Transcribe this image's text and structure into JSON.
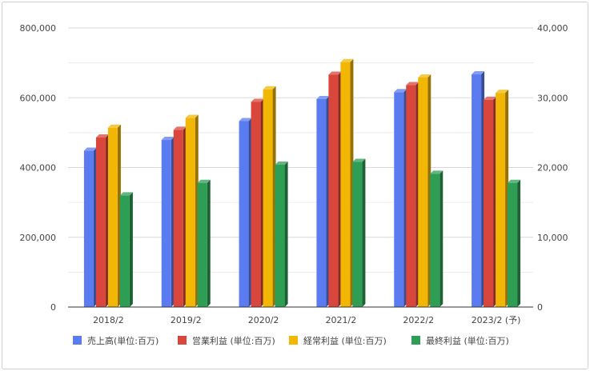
{
  "chart_data": {
    "type": "bar",
    "style": "3d-grouped",
    "categories": [
      "2018/2",
      "2019/2",
      "2020/2",
      "2021/2",
      "2022/2",
      "2023/2 (予)"
    ],
    "left_axis": {
      "ylim": [
        0,
        800000
      ],
      "ticks": [
        0,
        200000,
        400000,
        600000,
        800000
      ],
      "tick_labels": [
        "0",
        "200,000",
        "400,000",
        "600,000",
        "800,000"
      ]
    },
    "right_axis": {
      "ylim": [
        0,
        40000
      ],
      "ticks": [
        0,
        10000,
        20000,
        30000,
        40000
      ],
      "tick_labels": [
        "0",
        "10,000",
        "20,000",
        "30,000",
        "40,000"
      ]
    },
    "grid": true,
    "legend_position": "bottom",
    "series": [
      {
        "name": "売上高(単位:百万)",
        "axis": "left",
        "color": "#5b7cf0",
        "values": [
          448000,
          479000,
          533000,
          596000,
          616000,
          667000
        ]
      },
      {
        "name": "営業利益 (単位:百万)",
        "axis": "right",
        "color": "#d9463b",
        "values": [
          24300,
          25400,
          29400,
          33300,
          31800,
          29700
        ]
      },
      {
        "name": "経常利益 (単位:百万)",
        "axis": "right",
        "color": "#f2b705",
        "values": [
          25700,
          27100,
          31200,
          35100,
          32900,
          30700
        ]
      },
      {
        "name": "最終利益 (単位:百万)",
        "axis": "right",
        "color": "#2f9e55",
        "values": [
          16000,
          17800,
          20400,
          20800,
          19100,
          17800
        ]
      }
    ]
  }
}
